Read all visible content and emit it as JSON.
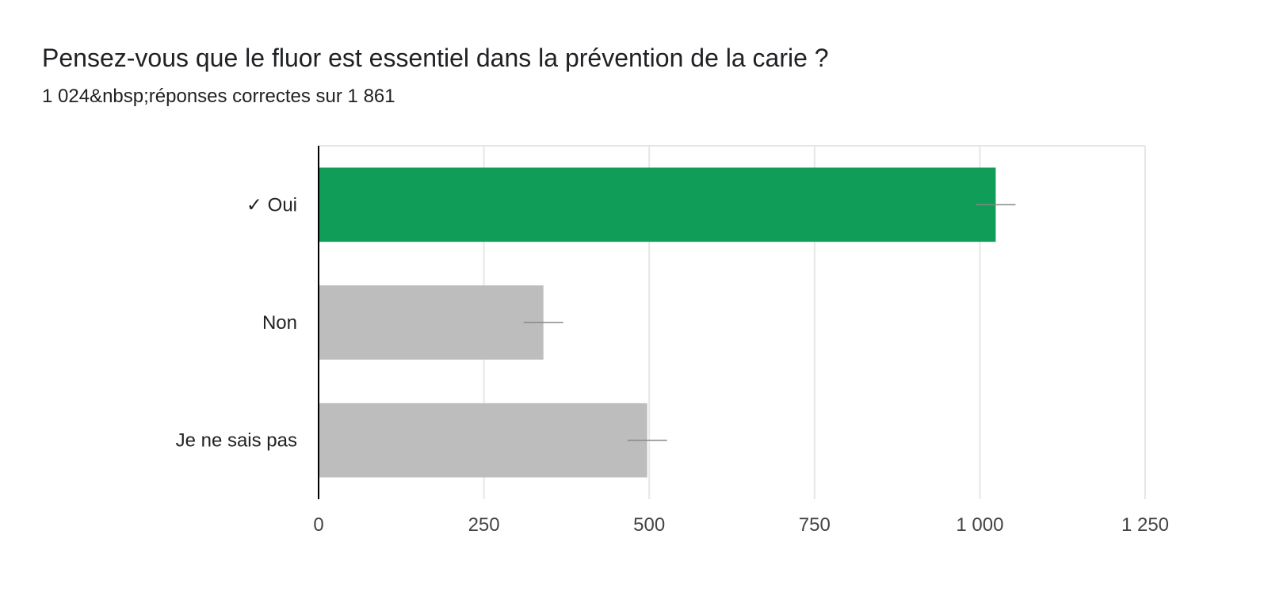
{
  "header": {
    "title": "Pensez-vous que le fluor est essentiel dans la prévention de la carie ?",
    "subtitle": "1 024&nbsp;réponses correctes sur 1 861"
  },
  "chart_data": {
    "type": "bar",
    "orientation": "horizontal",
    "categories": [
      "✓ Oui",
      "Non",
      "Je ne sais pas"
    ],
    "values": [
      1024,
      340,
      497
    ],
    "error_bars": [
      30,
      30,
      30
    ],
    "bar_colors": [
      "#0f9d58",
      "#bdbdbd",
      "#bdbdbd"
    ],
    "xlim": [
      0,
      1250
    ],
    "xticks": [
      0,
      250,
      500,
      750,
      1000,
      1250
    ],
    "xtick_labels": [
      "0",
      "250",
      "500",
      "750",
      "1 000",
      "1 250"
    ],
    "grid": true,
    "legend": "none"
  }
}
